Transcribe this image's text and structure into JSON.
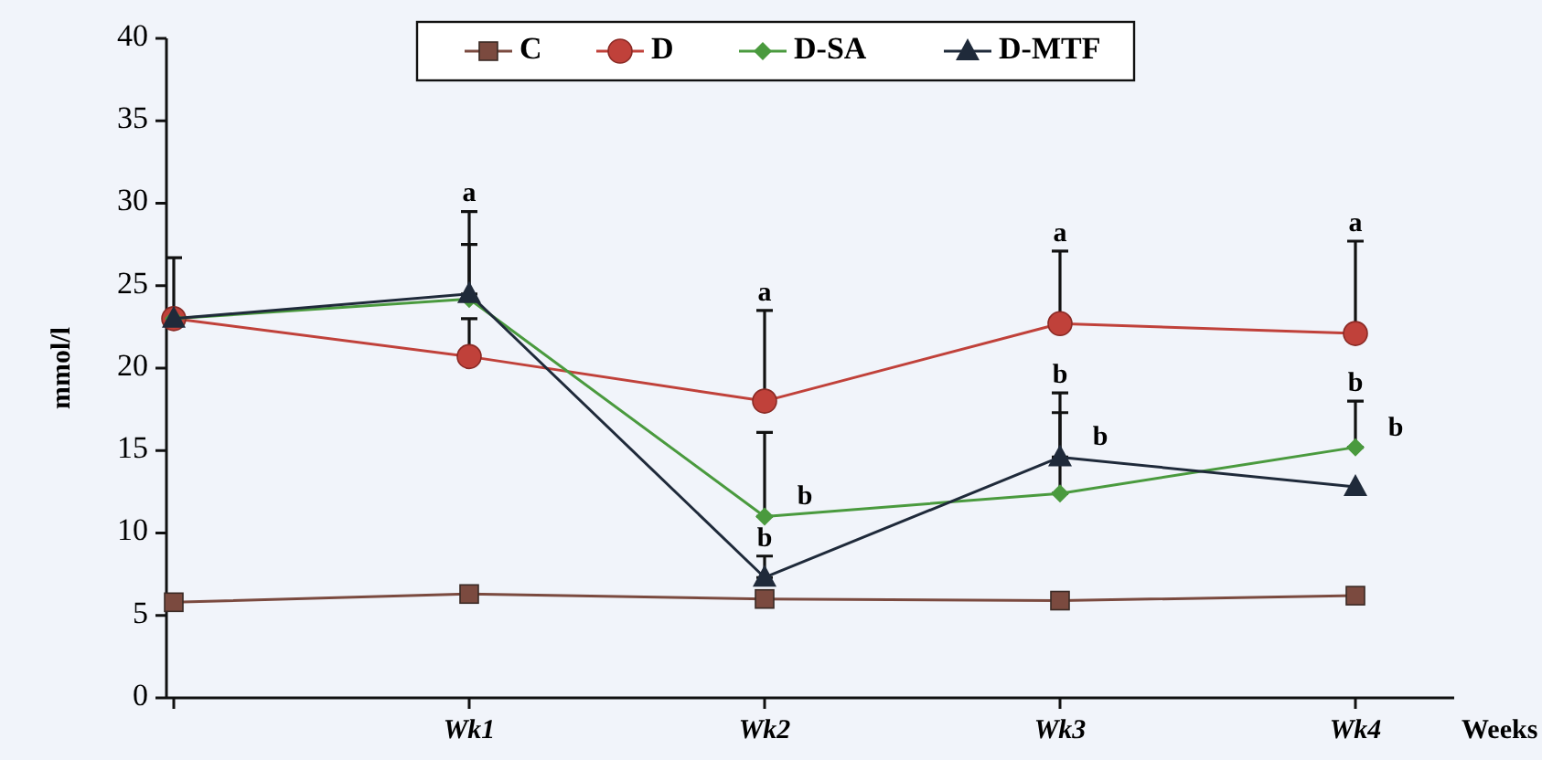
{
  "chart_data": {
    "type": "line",
    "categories": [
      null,
      "Wk1",
      "Wk2",
      "Wk3",
      "Wk4"
    ],
    "xlabel": "Weeks",
    "ylabel": "mmol/l",
    "ylim": [
      0,
      40
    ],
    "yticks": [
      0,
      5,
      10,
      15,
      20,
      25,
      30,
      35,
      40
    ],
    "grid": false,
    "legend": "top",
    "series": [
      {
        "name": "C",
        "color": "#7b4a3f",
        "marker": "square",
        "values": [
          5.8,
          6.3,
          6.0,
          5.9,
          6.2
        ]
      },
      {
        "name": "D",
        "color": "#c0413a",
        "marker": "circle",
        "values": [
          23.0,
          20.7,
          18.0,
          22.7,
          22.1
        ],
        "errors": [
          [
            23.0,
            26.7
          ],
          [
            20.7,
            23.0
          ],
          [
            18.0,
            23.5
          ],
          [
            22.7,
            27.1
          ],
          [
            22.1,
            27.7
          ]
        ]
      },
      {
        "name": "D-SA",
        "color": "#4a9a3e",
        "marker": "diamond",
        "values": [
          23.0,
          24.2,
          11.0,
          12.4,
          15.2
        ],
        "errors": [
          null,
          [
            24.2,
            27.5
          ],
          [
            11.0,
            16.1
          ],
          [
            12.4,
            18.5
          ],
          [
            15.2,
            18.0
          ]
        ]
      },
      {
        "name": "D-MTF",
        "color": "#1f2a3a",
        "marker": "triangle",
        "values": [
          23.0,
          24.5,
          7.3,
          14.6,
          12.8
        ],
        "errors": [
          null,
          [
            24.5,
            29.5
          ],
          [
            7.3,
            8.6
          ],
          [
            14.6,
            17.3
          ],
          null
        ]
      }
    ],
    "annotations": [
      {
        "text": "a",
        "x": "Wk1",
        "y": 29.5
      },
      {
        "text": "a",
        "x": "Wk2",
        "y": 23.5
      },
      {
        "text": "b",
        "x": "Wk2",
        "y": 11.0
      },
      {
        "text": "b",
        "x": "Wk2",
        "y": 8.6
      },
      {
        "text": "a",
        "x": "Wk3",
        "y": 27.1
      },
      {
        "text": "b",
        "x": "Wk3",
        "y": 18.5
      },
      {
        "text": "b",
        "x": "Wk3",
        "y": 14.6
      },
      {
        "text": "a",
        "x": "Wk4",
        "y": 27.7
      },
      {
        "text": "b",
        "x": "Wk4",
        "y": 18.0
      },
      {
        "text": "b",
        "x": "Wk4",
        "y": 15.2
      }
    ]
  }
}
